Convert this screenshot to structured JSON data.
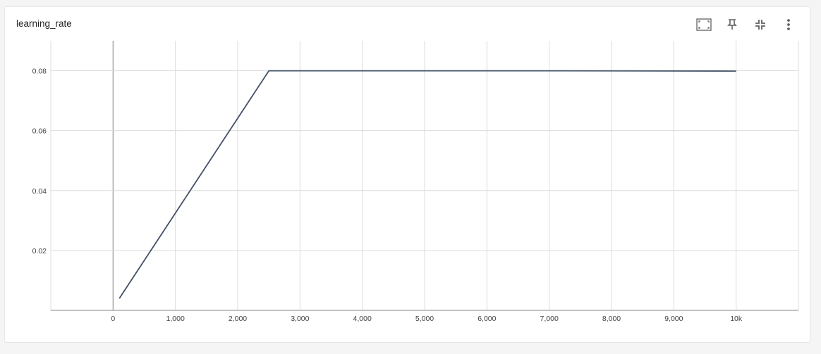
{
  "card": {
    "title": "learning_rate"
  },
  "toolbar": {
    "buttons": [
      {
        "name": "fit-domain-icon"
      },
      {
        "name": "pin-icon"
      },
      {
        "name": "collapse-icon"
      },
      {
        "name": "more-vert-icon"
      }
    ]
  },
  "colors": {
    "line": "#425066",
    "grid": "#dcdcdc",
    "zero_axis": "#9e9e9e"
  },
  "chart_data": {
    "type": "line",
    "title": "learning_rate",
    "xlabel": "",
    "ylabel": "",
    "x_ticks": [
      0,
      1000,
      2000,
      3000,
      4000,
      5000,
      6000,
      7000,
      8000,
      9000,
      10000
    ],
    "x_tick_labels": [
      "0",
      "1,000",
      "2,000",
      "3,000",
      "4,000",
      "5,000",
      "6,000",
      "7,000",
      "8,000",
      "9,000",
      "10k"
    ],
    "y_ticks": [
      0.02,
      0.04,
      0.06,
      0.08
    ],
    "y_tick_labels": [
      "0.02",
      "0.04",
      "0.06",
      "0.08"
    ],
    "xlim": [
      -1000,
      11000
    ],
    "ylim": [
      0,
      0.09
    ],
    "grid": true,
    "series": [
      {
        "x": [
          100,
          2500,
          7200,
          10000
        ],
        "y": [
          0.004,
          0.08,
          0.08,
          0.0799
        ]
      }
    ]
  }
}
